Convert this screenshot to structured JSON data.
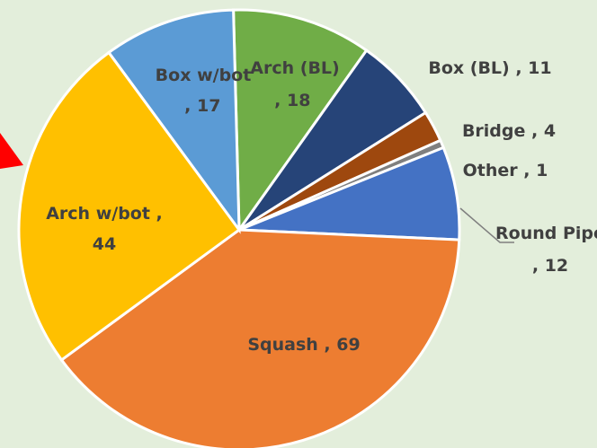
{
  "chart_data": {
    "type": "pie",
    "categories": [
      "Arch (BL)",
      "Box (BL)",
      "Bridge",
      "Other",
      "Round Pipe",
      "Squash",
      "Arch w/bot",
      "Box w/bot"
    ],
    "values": [
      18,
      11,
      4,
      1,
      12,
      69,
      44,
      17
    ],
    "value_labels": [
      " , 18",
      " , 11",
      " , 4",
      " , 1",
      ", 12",
      " , 69",
      " ,",
      " , 17"
    ],
    "colors": [
      "#70ad47",
      "#264478",
      "#9e480e",
      "#7f7f7f",
      "#4472c4",
      "#ed7d31",
      "#ffc000",
      "#5b9bd5"
    ]
  }
}
